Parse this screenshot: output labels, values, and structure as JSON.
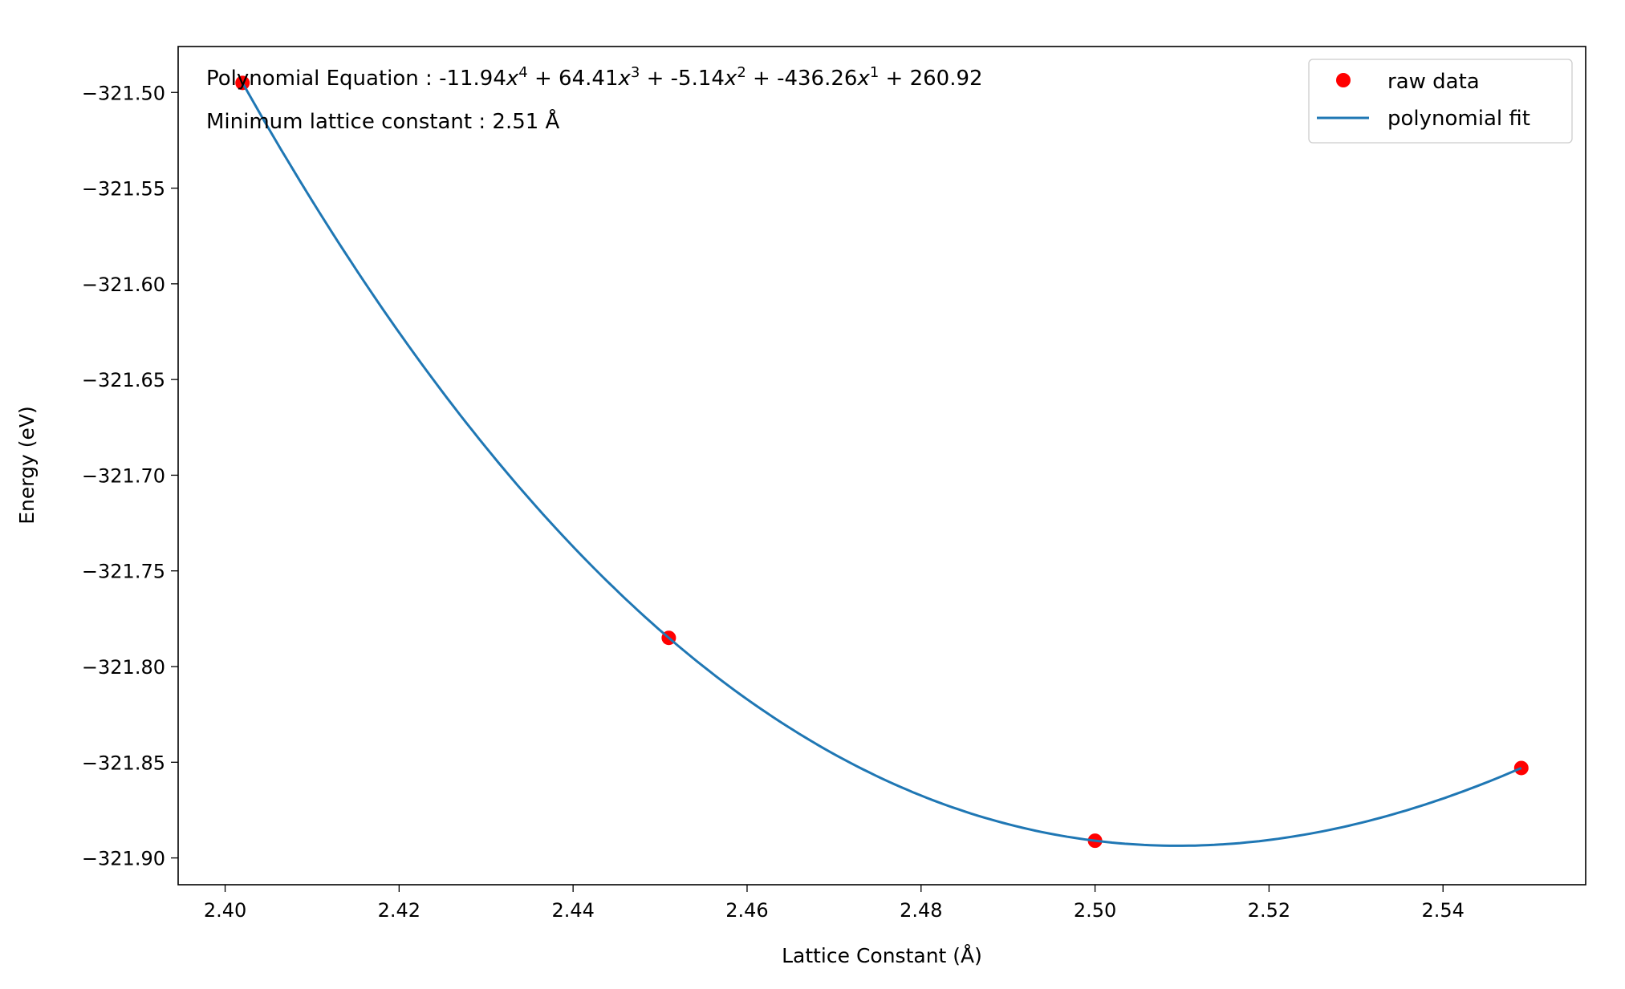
{
  "chart_data": {
    "type": "scatter",
    "xlabel": "Lattice Constant (Å)",
    "ylabel": "Energy (eV)",
    "xlim": [
      2.3946,
      2.5564
    ],
    "ylim": [
      -321.914,
      -321.476
    ],
    "xticks": [
      "2.40",
      "2.42",
      "2.44",
      "2.46",
      "2.48",
      "2.50",
      "2.52",
      "2.54"
    ],
    "xtick_values": [
      2.4,
      2.42,
      2.44,
      2.46,
      2.48,
      2.5,
      2.52,
      2.54
    ],
    "yticks": [
      "−321.50",
      "−321.55",
      "−321.60",
      "−321.65",
      "−321.70",
      "−321.75",
      "−321.80",
      "−321.85",
      "−321.90"
    ],
    "ytick_values": [
      -321.5,
      -321.55,
      -321.6,
      -321.65,
      -321.7,
      -321.75,
      -321.8,
      -321.85,
      -321.9
    ],
    "grid": false,
    "legend_position": "top-right",
    "series": [
      {
        "name": "raw data",
        "kind": "scatter",
        "color": "#ff0000",
        "x": [
          2.402,
          2.451,
          2.5,
          2.549
        ],
        "y": [
          -321.495,
          -321.785,
          -321.891,
          -321.853
        ]
      },
      {
        "name": "polynomial fit",
        "kind": "line",
        "color": "#1f77b4",
        "coefficients": [
          -11.94,
          64.41,
          -5.14,
          -436.26,
          260.92
        ]
      }
    ],
    "annotations": {
      "equation_prefix": "Polynomial Equation : ",
      "terms": [
        {
          "coef": "-11.94",
          "power": "4"
        },
        {
          "coef": "64.41",
          "power": "3"
        },
        {
          "coef": "-5.14",
          "power": "2"
        },
        {
          "coef": "-436.26",
          "power": "1"
        }
      ],
      "constant": "260.92",
      "minimum": "Minimum lattice constant : 2.51 Å"
    }
  }
}
